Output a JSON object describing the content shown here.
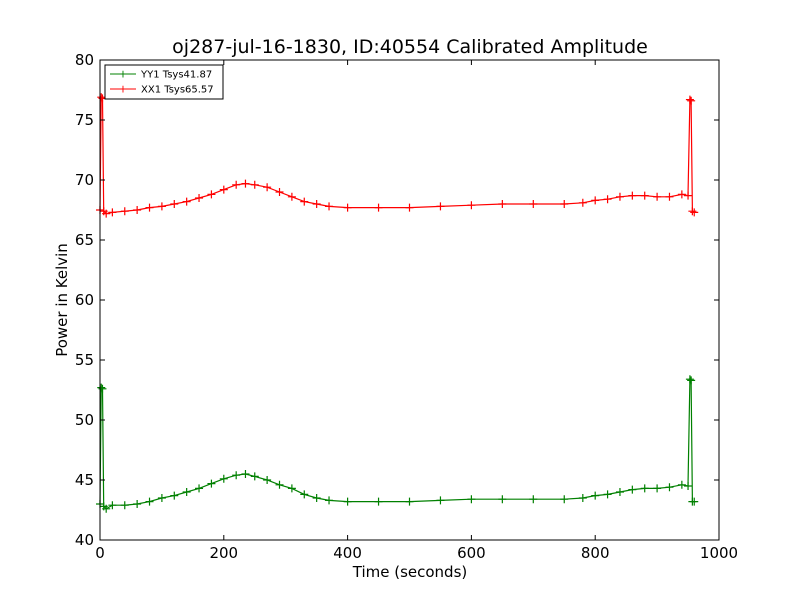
{
  "chart_data": {
    "type": "line",
    "title": "oj287-jul-16-1830, ID:40554 Calibrated Amplitude",
    "xlabel": "Time (seconds)",
    "ylabel": "Power in Kelvin",
    "xlim": [
      0,
      1000
    ],
    "ylim": [
      40,
      80
    ],
    "xticks": [
      0,
      200,
      400,
      600,
      800,
      1000
    ],
    "yticks": [
      40,
      45,
      50,
      55,
      60,
      65,
      70,
      75,
      80
    ],
    "grid": false,
    "legend_position": "top-left",
    "marker": "+",
    "series": [
      {
        "name": "YY1 Tsys41.87",
        "color": "#008000",
        "x": [
          0,
          2,
          4,
          6,
          10,
          20,
          40,
          60,
          80,
          100,
          120,
          140,
          160,
          180,
          200,
          220,
          235,
          250,
          270,
          290,
          310,
          330,
          350,
          370,
          400,
          450,
          500,
          550,
          600,
          650,
          700,
          750,
          780,
          800,
          820,
          840,
          860,
          880,
          900,
          920,
          940,
          950,
          953,
          955,
          957,
          960
        ],
        "y": [
          43.0,
          52.7,
          52.6,
          42.8,
          42.6,
          42.9,
          42.9,
          43.0,
          43.2,
          43.5,
          43.7,
          44.0,
          44.3,
          44.7,
          45.1,
          45.4,
          45.5,
          45.3,
          45.0,
          44.6,
          44.3,
          43.8,
          43.5,
          43.3,
          43.2,
          43.2,
          43.2,
          43.3,
          43.4,
          43.4,
          43.4,
          43.4,
          43.5,
          43.7,
          43.8,
          44.0,
          44.2,
          44.3,
          44.3,
          44.4,
          44.6,
          44.5,
          53.4,
          53.3,
          43.2,
          43.2
        ]
      },
      {
        "name": "XX1 Tsys65.57",
        "color": "#ff0000",
        "x": [
          0,
          2,
          4,
          6,
          10,
          20,
          40,
          60,
          80,
          100,
          120,
          140,
          160,
          180,
          200,
          220,
          235,
          250,
          270,
          290,
          310,
          330,
          350,
          370,
          400,
          450,
          500,
          550,
          600,
          650,
          700,
          750,
          780,
          800,
          820,
          840,
          860,
          880,
          900,
          920,
          940,
          950,
          953,
          955,
          957,
          960
        ],
        "y": [
          67.5,
          76.9,
          76.8,
          67.4,
          67.2,
          67.3,
          67.4,
          67.5,
          67.7,
          67.8,
          68.0,
          68.2,
          68.5,
          68.8,
          69.2,
          69.6,
          69.7,
          69.6,
          69.4,
          69.0,
          68.6,
          68.2,
          68.0,
          67.8,
          67.7,
          67.7,
          67.7,
          67.8,
          67.9,
          68.0,
          68.0,
          68.0,
          68.1,
          68.3,
          68.4,
          68.6,
          68.7,
          68.7,
          68.6,
          68.6,
          68.8,
          68.7,
          76.7,
          76.6,
          67.4,
          67.3
        ]
      }
    ]
  }
}
